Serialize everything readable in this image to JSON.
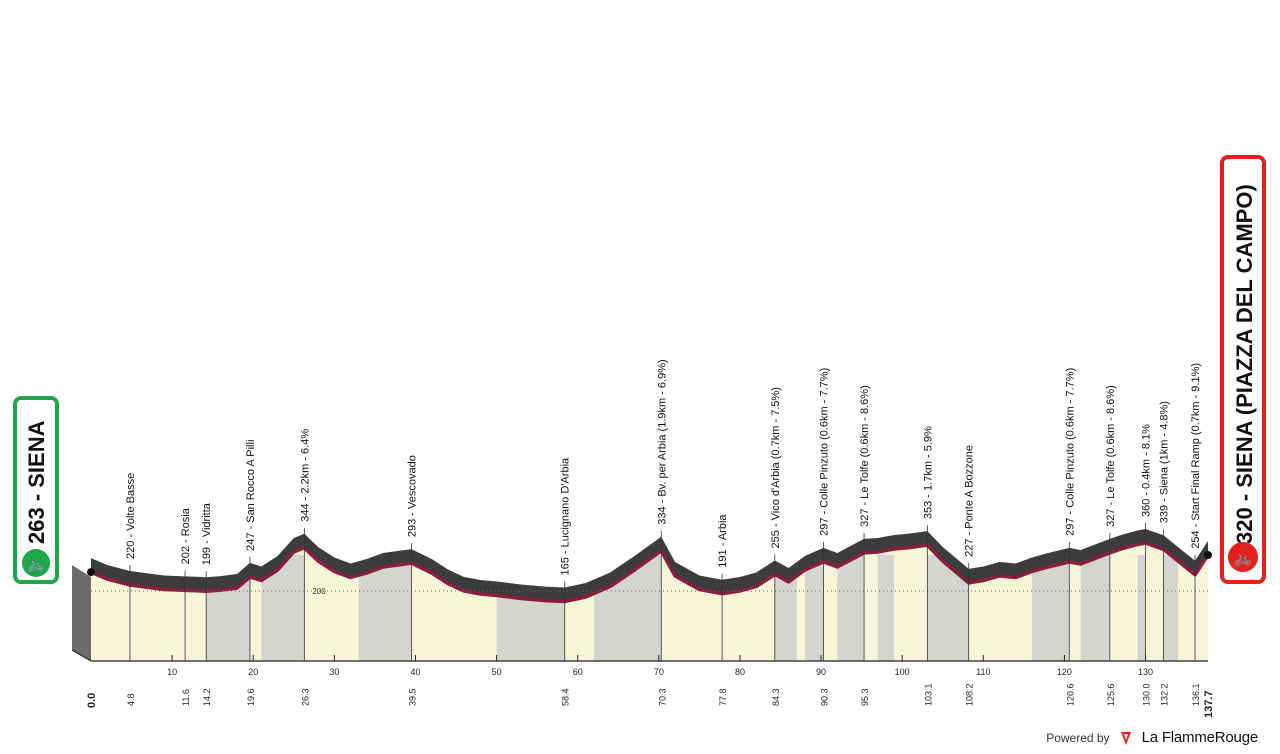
{
  "start": {
    "label": "263 - SIENA",
    "color": "#1fa64b"
  },
  "finish": {
    "label": "320 - SIENA (PIAZZA DEL CAMPO)",
    "color": "#e3201b"
  },
  "footer": {
    "powered_by": "Powered by",
    "brand": "La FlammeRouge"
  },
  "colors": {
    "road": "#8b1e3f",
    "ground": "#f7f6d8",
    "mountain": "#5a5a5a",
    "hatch": "#c9c9c9"
  },
  "chart_data": {
    "type": "area",
    "xlabel": "",
    "ylabel": "",
    "xlim": [
      0,
      137.7
    ],
    "x_ticks": [
      10,
      20,
      30,
      40,
      50,
      60,
      70,
      80,
      90,
      100,
      110,
      120,
      130
    ],
    "reference_line": {
      "value": 200,
      "label": "200"
    },
    "profile": [
      {
        "x": 0,
        "y": 263
      },
      {
        "x": 2,
        "y": 240
      },
      {
        "x": 4.8,
        "y": 220
      },
      {
        "x": 7,
        "y": 212
      },
      {
        "x": 9,
        "y": 205
      },
      {
        "x": 11.6,
        "y": 202
      },
      {
        "x": 13,
        "y": 201
      },
      {
        "x": 14.2,
        "y": 199
      },
      {
        "x": 16,
        "y": 203
      },
      {
        "x": 18,
        "y": 210
      },
      {
        "x": 19.6,
        "y": 247
      },
      {
        "x": 21,
        "y": 235
      },
      {
        "x": 23,
        "y": 270
      },
      {
        "x": 25,
        "y": 330
      },
      {
        "x": 26.3,
        "y": 344
      },
      {
        "x": 28,
        "y": 300
      },
      {
        "x": 30,
        "y": 265
      },
      {
        "x": 32,
        "y": 245
      },
      {
        "x": 34,
        "y": 260
      },
      {
        "x": 36,
        "y": 280
      },
      {
        "x": 39.5,
        "y": 293
      },
      {
        "x": 42,
        "y": 260
      },
      {
        "x": 44,
        "y": 225
      },
      {
        "x": 46,
        "y": 200
      },
      {
        "x": 48,
        "y": 190
      },
      {
        "x": 50,
        "y": 185
      },
      {
        "x": 53,
        "y": 175
      },
      {
        "x": 56,
        "y": 168
      },
      {
        "x": 58.4,
        "y": 165
      },
      {
        "x": 61,
        "y": 180
      },
      {
        "x": 64,
        "y": 215
      },
      {
        "x": 67,
        "y": 270
      },
      {
        "x": 70.3,
        "y": 334
      },
      {
        "x": 72,
        "y": 250
      },
      {
        "x": 75,
        "y": 205
      },
      {
        "x": 77.8,
        "y": 191
      },
      {
        "x": 80,
        "y": 200
      },
      {
        "x": 82,
        "y": 215
      },
      {
        "x": 84.3,
        "y": 255
      },
      {
        "x": 86,
        "y": 230
      },
      {
        "x": 88,
        "y": 270
      },
      {
        "x": 90.3,
        "y": 297
      },
      {
        "x": 92,
        "y": 280
      },
      {
        "x": 95.3,
        "y": 327
      },
      {
        "x": 97,
        "y": 330
      },
      {
        "x": 99,
        "y": 340
      },
      {
        "x": 101,
        "y": 345
      },
      {
        "x": 103.1,
        "y": 353
      },
      {
        "x": 105,
        "y": 300
      },
      {
        "x": 108.2,
        "y": 227
      },
      {
        "x": 110,
        "y": 235
      },
      {
        "x": 112,
        "y": 250
      },
      {
        "x": 114,
        "y": 245
      },
      {
        "x": 116,
        "y": 265
      },
      {
        "x": 118,
        "y": 280
      },
      {
        "x": 120.6,
        "y": 297
      },
      {
        "x": 122,
        "y": 290
      },
      {
        "x": 125.6,
        "y": 327
      },
      {
        "x": 127,
        "y": 340
      },
      {
        "x": 129,
        "y": 355
      },
      {
        "x": 130.0,
        "y": 360
      },
      {
        "x": 132.2,
        "y": 339
      },
      {
        "x": 134,
        "y": 300
      },
      {
        "x": 136.1,
        "y": 254
      },
      {
        "x": 137.7,
        "y": 320
      }
    ],
    "waypoints": [
      {
        "km": "4.8",
        "label": "220 - Volte Basse",
        "x": 4.8
      },
      {
        "km": "11.6",
        "label": "202 - Rosia",
        "x": 11.6
      },
      {
        "km": "14.2",
        "label": "199 - Vidritta",
        "x": 14.2
      },
      {
        "km": "19.6",
        "label": "247 - San Rocco A Pilli",
        "x": 19.6
      },
      {
        "km": "26.3",
        "label": "344 - 2.2km - 6.4%",
        "x": 26.3
      },
      {
        "km": "39.5",
        "label": "293 - Vescovado",
        "x": 39.5
      },
      {
        "km": "58.4",
        "label": "165 - Lucignano D'Arbia",
        "x": 58.4
      },
      {
        "km": "70.3",
        "label": "334 - Bv. per Arbia (1.9km - 6.9%)",
        "x": 70.3
      },
      {
        "km": "77.8",
        "label": "191 - Arbia",
        "x": 77.8
      },
      {
        "km": "84.3",
        "label": "255 - Vico d'Arbia (0.7km - 7.5%)",
        "x": 84.3
      },
      {
        "km": "90.3",
        "label": "297 - Colle Pinzuto (0.6km - 7.7%)",
        "x": 90.3
      },
      {
        "km": "95.3",
        "label": "327 - Le Tolfe (0.6km - 8.6%)",
        "x": 95.3
      },
      {
        "km": "103.1",
        "label": "353 - 1.7km - 5.9%",
        "x": 103.1
      },
      {
        "km": "108.2",
        "label": "227 - Ponte A Bozzone",
        "x": 108.2
      },
      {
        "km": "120.6",
        "label": "297 - Colle Pinzuto (0.6km - 7.7%)",
        "x": 120.6
      },
      {
        "km": "125.6",
        "label": "327 - Le Tolfe (0.6km - 8.6%)",
        "x": 125.6
      },
      {
        "km": "130.0",
        "label": "360 - 0.4km - 8.1%",
        "x": 130.0
      },
      {
        "km": "132.2",
        "label": "339 - Siena (1km - 4.8%)",
        "x": 132.2
      },
      {
        "km": "136.1",
        "label": "254 - Start Final Ramp (0.7km - 9.1%)",
        "x": 136.1
      }
    ],
    "km_start_label": "0.0",
    "km_end_label": "137.7"
  }
}
